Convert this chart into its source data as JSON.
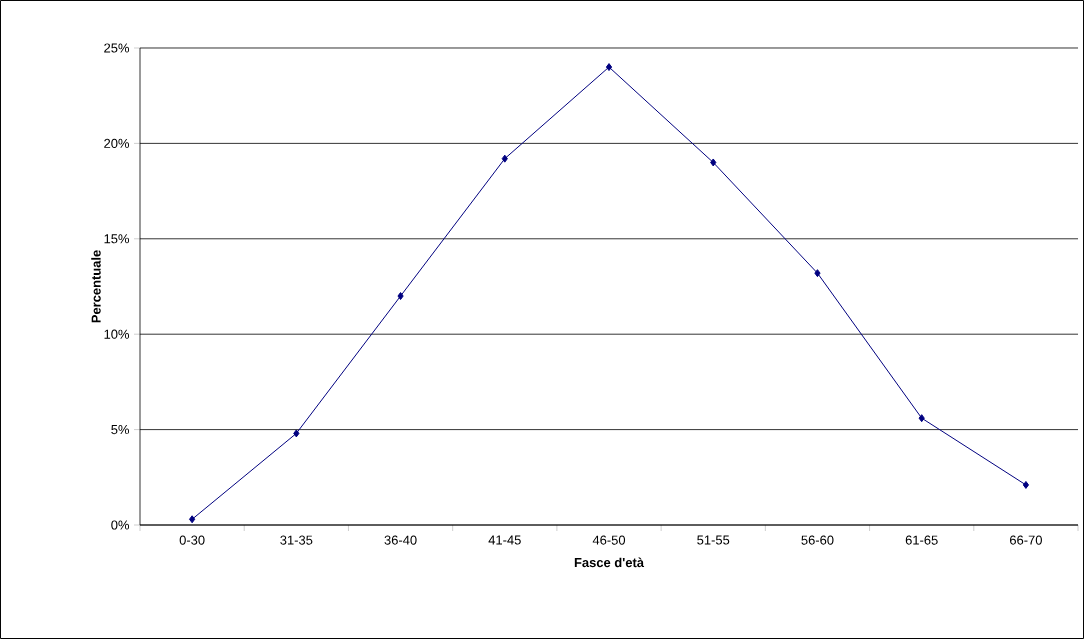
{
  "chart_data": {
    "type": "line",
    "xlabel": "Fasce d'età",
    "ylabel": "Percentuale",
    "categories": [
      "0-30",
      "31-35",
      "36-40",
      "41-45",
      "46-50",
      "51-55",
      "56-60",
      "61-65",
      "66-70"
    ],
    "series": [
      {
        "color": "#000080",
        "values": [
          0.3,
          4.8,
          12.0,
          19.2,
          24.0,
          19.0,
          13.2,
          5.6,
          2.1
        ]
      }
    ],
    "ylim": [
      0,
      25
    ],
    "yticks": [
      {
        "value": 0,
        "label": "0%"
      },
      {
        "value": 5,
        "label": "5%"
      },
      {
        "value": 10,
        "label": "10%"
      },
      {
        "value": 15,
        "label": "15%"
      },
      {
        "value": 20,
        "label": "20%"
      },
      {
        "value": 25,
        "label": "25%"
      }
    ],
    "grid": "y",
    "marker": "diamond",
    "line_style": "solid"
  }
}
